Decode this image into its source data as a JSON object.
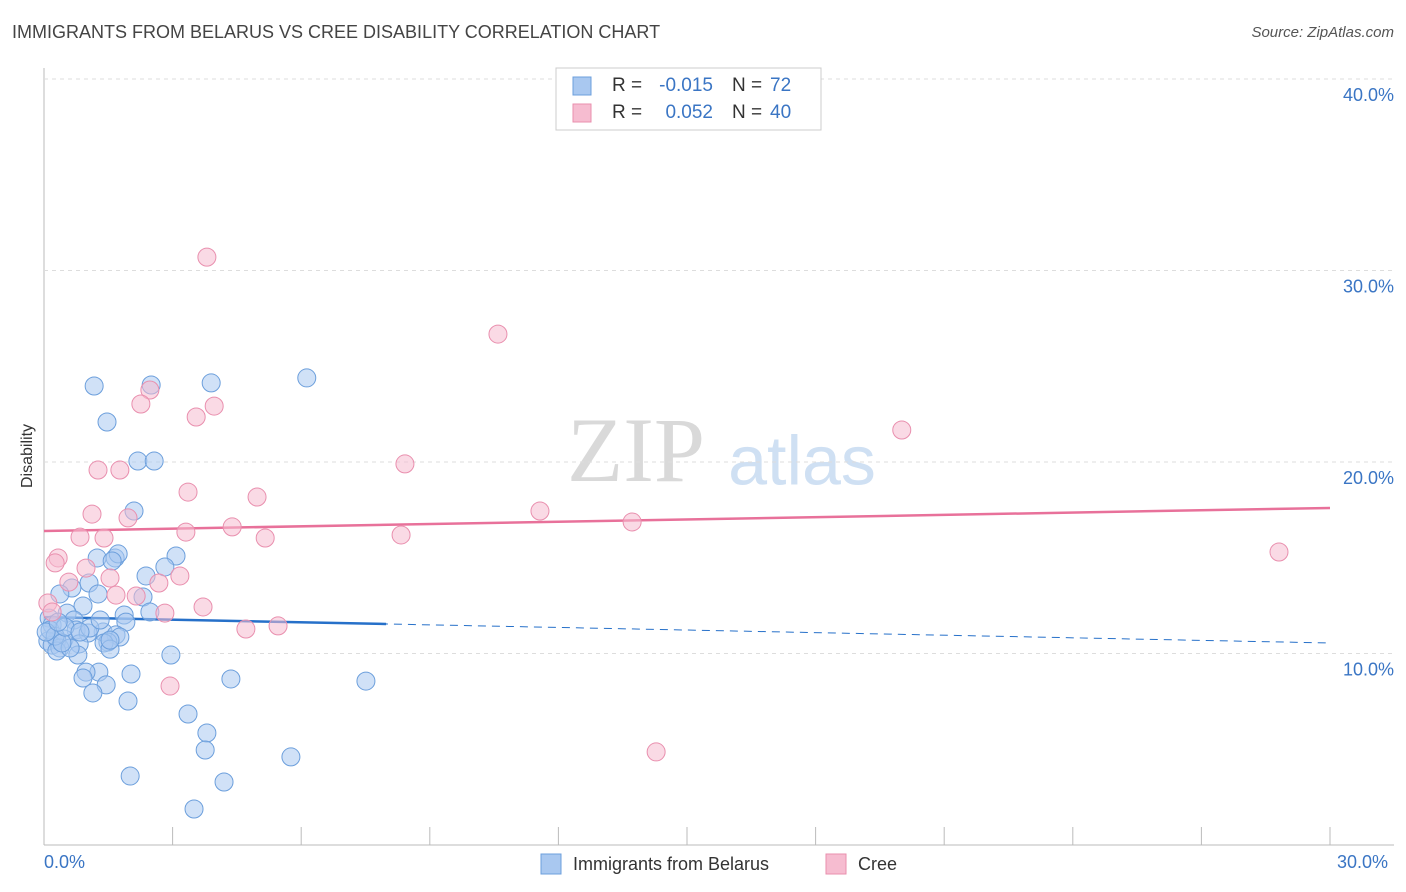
{
  "chart_data": {
    "type": "scatter",
    "title": "IMMIGRANTS FROM BELARUS VS CREE DISABILITY CORRELATION CHART",
    "source": "Source: ZipAtlas.com",
    "watermark": [
      "ZIP",
      "atlas"
    ],
    "y_label": "Disability",
    "xlim": [
      0,
      30
    ],
    "ylim": [
      0,
      40
    ],
    "xticks": [
      {
        "value": 0,
        "label": "0.0%"
      },
      {
        "value": 30,
        "label": "30.0%"
      }
    ],
    "xminorticks": [
      3,
      6,
      9,
      12,
      15,
      18,
      21,
      24,
      27
    ],
    "yticks": [
      {
        "value": 10,
        "label": "10.0%"
      },
      {
        "value": 20,
        "label": "20.0%"
      },
      {
        "value": 30,
        "label": "30.0%"
      },
      {
        "value": 40,
        "label": "40.0%"
      }
    ],
    "grid": true,
    "legend": "bottom",
    "stats_labels": {
      "r": "R =",
      "n": "N ="
    },
    "series": [
      {
        "name": "Immigrants from Belarus",
        "color": "#a9c8f0",
        "edge": "#6c9fdc",
        "line_color": "#2670c9",
        "r": -0.015,
        "n": 72,
        "trend": {
          "x": [
            0,
            30
          ],
          "y": [
            11.9,
            10.55
          ]
        },
        "trend_solid_until": 7.98,
        "x": [
          1.17,
          1.47,
          2.5,
          3.9,
          6.13,
          2.19,
          2.57,
          2.1,
          1.24,
          1.66,
          1.73,
          1.59,
          3.08,
          2.82,
          2.38,
          1.05,
          0.65,
          0.37,
          1.26,
          2.31,
          0.91,
          1.87,
          1.91,
          0.54,
          0.7,
          0.12,
          0.19,
          0.75,
          1.38,
          1.68,
          1.77,
          1.03,
          0.47,
          0.3,
          0.09,
          0.19,
          0.37,
          0.82,
          1.49,
          1.4,
          1.54,
          0.79,
          2.96,
          0.3,
          1.28,
          0.98,
          0.91,
          2.03,
          4.36,
          7.51,
          1.45,
          1.14,
          1.96,
          3.36,
          3.8,
          3.76,
          5.76,
          2.01,
          4.2,
          3.5,
          0.14,
          0.26,
          0.61,
          0.42,
          1.07,
          1.31,
          2.47,
          0.05,
          0.49,
          0.84,
          0.33,
          1.54
        ],
        "y": [
          23.97,
          22.09,
          24.02,
          24.13,
          24.39,
          20.05,
          20.05,
          17.44,
          14.99,
          14.99,
          15.2,
          14.83,
          15.09,
          14.52,
          14.05,
          13.68,
          13.42,
          13.11,
          13.11,
          12.95,
          12.48,
          12.01,
          11.64,
          12.11,
          11.75,
          11.85,
          11.49,
          11.23,
          11.12,
          10.97,
          10.86,
          11.07,
          10.76,
          10.7,
          10.65,
          10.44,
          10.29,
          10.5,
          10.6,
          10.55,
          10.23,
          9.92,
          9.92,
          10.13,
          9.03,
          9.03,
          8.72,
          8.93,
          8.67,
          8.56,
          8.36,
          7.94,
          7.52,
          6.84,
          5.85,
          4.96,
          4.6,
          3.6,
          3.29,
          1.88,
          11.23,
          10.91,
          10.29,
          10.55,
          11.33,
          11.75,
          12.17,
          11.12,
          11.38,
          11.12,
          11.64,
          10.7
        ]
      },
      {
        "name": "Cree",
        "color": "#f6bcd0",
        "edge": "#e98fae",
        "line_color": "#e8719a",
        "r": 0.052,
        "n": 40,
        "trend": {
          "x": [
            0,
            30
          ],
          "y": [
            16.4,
            17.6
          ]
        },
        "x": [
          3.8,
          10.59,
          2.47,
          2.26,
          3.97,
          3.55,
          20.01,
          1.26,
          1.77,
          8.42,
          3.36,
          4.97,
          1.12,
          1.96,
          11.57,
          13.72,
          4.39,
          3.31,
          5.16,
          8.33,
          0.84,
          1.4,
          0.33,
          0.26,
          0.98,
          3.17,
          0.58,
          1.54,
          2.68,
          1.68,
          2.15,
          3.71,
          2.82,
          0.09,
          5.46,
          4.71,
          2.94,
          14.28,
          28.81,
          0.19
        ],
        "y": [
          30.7,
          26.68,
          23.76,
          23.03,
          22.92,
          22.35,
          21.67,
          19.58,
          19.58,
          19.9,
          18.43,
          18.17,
          17.28,
          17.08,
          17.44,
          16.87,
          16.61,
          16.34,
          16.03,
          16.19,
          16.08,
          16.03,
          14.99,
          14.73,
          14.46,
          14.05,
          13.73,
          13.94,
          13.68,
          13.05,
          13.0,
          12.43,
          12.11,
          12.64,
          11.44,
          11.28,
          8.3,
          4.86,
          15.3,
          12.17
        ]
      }
    ]
  }
}
